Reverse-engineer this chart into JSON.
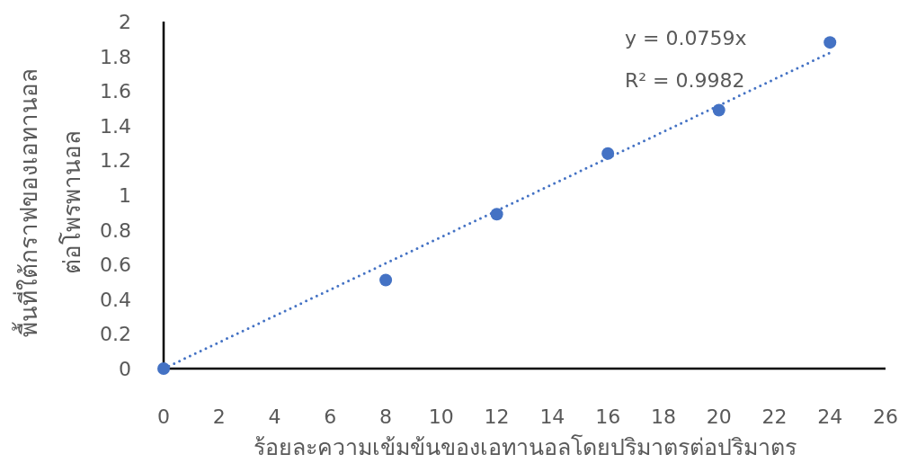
{
  "chart_data": {
    "type": "scatter",
    "xlabel": "ร้อยละความเข้มข้นของเอทานอลโดยปริมาตรต่อปริมาตร",
    "ylabel": "พื้นที่ใต้กราฟของเอทานอลต่อโพรพานอล",
    "annotations": [
      "y = 0.0759x",
      "R² = 0.9982"
    ],
    "xlim": [
      0,
      26
    ],
    "xticks": [
      0,
      2,
      4,
      6,
      8,
      10,
      12,
      14,
      16,
      18,
      20,
      22,
      24,
      26
    ],
    "ylim": [
      0,
      2
    ],
    "yticks": [
      0,
      0.2,
      0.4,
      0.6,
      0.8,
      1,
      1.2,
      1.4,
      1.6,
      1.8,
      2
    ],
    "series": [
      {
        "type": "scatter",
        "color": "#4472c4",
        "marker": "circle",
        "x": [
          0,
          8,
          12,
          16,
          20,
          24
        ],
        "values": [
          0,
          0.51,
          0.89,
          1.24,
          1.49,
          1.88
        ]
      },
      {
        "type": "line",
        "color": "#4472c4",
        "marker": "none",
        "line_style": "dotted",
        "x": [
          0,
          24
        ],
        "values": [
          0,
          1.82
        ]
      }
    ]
  }
}
